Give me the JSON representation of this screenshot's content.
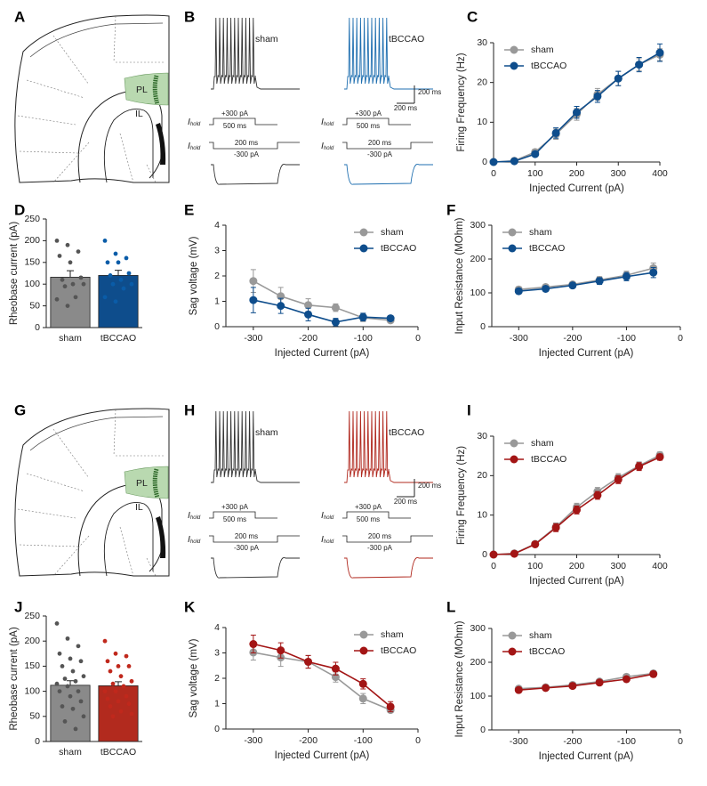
{
  "brain_panels": [
    {
      "panel": "A",
      "regions": [
        "PL",
        "IL"
      ]
    },
    {
      "panel": "G",
      "regions": [
        "PL",
        "IL"
      ]
    }
  ],
  "trace_panels": [
    {
      "panel": "B",
      "scale_y": "200 ms",
      "scale_x": "200 ms",
      "groups": [
        {
          "name": "sham",
          "color": "#333333",
          "step_up": "+300 pA",
          "step_up_duration": "500 ms",
          "step_down_duration": "200 ms",
          "step_down": "-300 pA",
          "hold_symbol": "I",
          "hold_subscript": "hold"
        },
        {
          "name": "tBCCAO",
          "color": "#1f6fb0",
          "step_up": "+300 pA",
          "step_up_duration": "500 ms",
          "step_down_duration": "200 ms",
          "step_down": "-300 pA",
          "hold_symbol": "I",
          "hold_subscript": "hold"
        }
      ]
    },
    {
      "panel": "H",
      "scale_y": "200 ms",
      "scale_x": "200 ms",
      "groups": [
        {
          "name": "sham",
          "color": "#333333",
          "step_up": "+300 pA",
          "step_up_duration": "500 ms",
          "step_down_duration": "200 ms",
          "step_down": "-300 pA",
          "hold_symbol": "I",
          "hold_subscript": "hold"
        },
        {
          "name": "tBCCAO",
          "color": "#b0281e",
          "step_up": "+300 pA",
          "step_up_duration": "500 ms",
          "step_down_duration": "200 ms",
          "step_down": "-300 pA",
          "hold_symbol": "I",
          "hold_subscript": "hold"
        }
      ]
    }
  ],
  "chart_data": [
    {
      "type": "line",
      "panel": "C",
      "xlabel": "Injected Current (pA)",
      "ylabel": "Firing Frequency (Hz)",
      "legend": "upper left",
      "x": [
        0,
        50,
        100,
        150,
        200,
        250,
        300,
        350,
        400
      ],
      "xlim": [
        0,
        400
      ],
      "xticks": [
        0,
        100,
        200,
        300,
        400
      ],
      "ylim": [
        0,
        30
      ],
      "yticks": [
        0,
        10,
        20,
        30
      ],
      "series": [
        {
          "name": "sham",
          "color": "#999999",
          "values": [
            0,
            0.3,
            2.5,
            7,
            12,
            17,
            21,
            24.5,
            27
          ],
          "errors": [
            0,
            0.3,
            0.7,
            1.3,
            1.5,
            1.5,
            1.8,
            1.5,
            1.5
          ]
        },
        {
          "name": "tBCCAO",
          "color": "#0e4d8c",
          "values": [
            0,
            0.2,
            2,
            7.3,
            12.5,
            16.5,
            21,
            24.5,
            27.5
          ],
          "errors": [
            0,
            0.2,
            0.6,
            1.3,
            1.5,
            1.5,
            1.8,
            1.8,
            2.2
          ]
        }
      ]
    },
    {
      "type": "bar",
      "panel": "D",
      "ylabel": "Rheobase current (pA)",
      "categories": [
        "sham",
        "tBCCAO"
      ],
      "values": [
        116,
        120
      ],
      "errors": [
        15,
        12
      ],
      "colors": [
        "#8a8a8a",
        "#0e4d8c"
      ],
      "point_colors": [
        "#555555",
        "#0a5ca8"
      ],
      "ylim": [
        0,
        250
      ],
      "yticks": [
        0,
        50,
        100,
        150,
        200,
        250
      ],
      "points": [
        [
          200,
          190,
          175,
          165,
          150,
          115,
          110,
          100,
          100,
          95,
          70,
          65,
          50
        ],
        [
          200,
          170,
          160,
          150,
          150,
          125,
          120,
          110,
          100,
          100,
          90,
          70,
          60
        ]
      ]
    },
    {
      "type": "line",
      "panel": "E",
      "xlabel": "Injected Current (pA)",
      "ylabel": "Sag voltage (mV)",
      "legend": "upper right",
      "x": [
        -300,
        -250,
        -200,
        -150,
        -100,
        -50
      ],
      "xlim": [
        -350,
        0
      ],
      "xticks": [
        -300,
        -200,
        -100,
        0
      ],
      "ylim": [
        0,
        4
      ],
      "yticks": [
        0,
        1,
        2,
        3,
        4
      ],
      "series": [
        {
          "name": "sham",
          "color": "#999999",
          "values": [
            1.8,
            1.2,
            0.85,
            0.75,
            0.35,
            0.25
          ],
          "errors": [
            0.45,
            0.35,
            0.25,
            0.15,
            0.15,
            0.1
          ]
        },
        {
          "name": "tBCCAO",
          "color": "#0e4d8c",
          "values": [
            1.05,
            0.82,
            0.48,
            0.18,
            0.38,
            0.33
          ],
          "errors": [
            0.5,
            0.3,
            0.25,
            0.15,
            0.15,
            0.1
          ]
        }
      ]
    },
    {
      "type": "line",
      "panel": "F",
      "xlabel": "Injected Current (pA)",
      "ylabel": "Input Resistance (MOhm)",
      "legend": "upper left",
      "x": [
        -300,
        -250,
        -200,
        -150,
        -100,
        -50
      ],
      "xlim": [
        -350,
        0
      ],
      "xticks": [
        -300,
        -200,
        -100,
        0
      ],
      "ylim": [
        0,
        300
      ],
      "yticks": [
        0,
        100,
        200,
        300
      ],
      "series": [
        {
          "name": "sham",
          "color": "#999999",
          "values": [
            110,
            117,
            125,
            138,
            152,
            173
          ],
          "errors": [
            8,
            7,
            8,
            10,
            12,
            15
          ]
        },
        {
          "name": "tBCCAO",
          "color": "#0e4d8c",
          "values": [
            105,
            112,
            122,
            135,
            148,
            160
          ],
          "errors": [
            8,
            7,
            8,
            10,
            12,
            15
          ]
        }
      ]
    },
    {
      "type": "line",
      "panel": "I",
      "xlabel": "Injected Current (pA)",
      "ylabel": "Firing Frequency (Hz)",
      "legend": "upper left",
      "x": [
        0,
        50,
        100,
        150,
        200,
        250,
        300,
        350,
        400
      ],
      "xlim": [
        0,
        400
      ],
      "xticks": [
        0,
        100,
        200,
        300,
        400
      ],
      "ylim": [
        0,
        30
      ],
      "yticks": [
        0,
        10,
        20,
        30
      ],
      "series": [
        {
          "name": "sham",
          "color": "#999999",
          "values": [
            0,
            0.3,
            2.7,
            7,
            12,
            16,
            19.5,
            22.5,
            25.2
          ],
          "errors": [
            0,
            0.3,
            0.5,
            1,
            1,
            1,
            1,
            1,
            0.8
          ]
        },
        {
          "name": "tBCCAO",
          "color": "#a31515",
          "values": [
            0,
            0.2,
            2.6,
            6.8,
            11.3,
            15,
            19,
            22.3,
            24.7
          ],
          "errors": [
            0,
            0.2,
            0.5,
            1,
            1,
            1,
            1,
            1,
            0.8
          ]
        }
      ]
    },
    {
      "type": "bar",
      "panel": "J",
      "ylabel": "Rheobase current (pA)",
      "categories": [
        "sham",
        "tBCCAO"
      ],
      "values": [
        112,
        111
      ],
      "errors": [
        9,
        8
      ],
      "colors": [
        "#8a8a8a",
        "#b22a1e"
      ],
      "point_colors": [
        "#555555",
        "#c0281c"
      ],
      "ylim": [
        0,
        250
      ],
      "yticks": [
        0,
        50,
        100,
        150,
        200,
        250
      ],
      "points": [
        [
          235,
          205,
          190,
          175,
          165,
          160,
          150,
          140,
          130,
          125,
          120,
          115,
          110,
          100,
          100,
          90,
          80,
          70,
          65,
          50,
          40,
          25
        ],
        [
          200,
          175,
          170,
          160,
          150,
          150,
          140,
          130,
          120,
          115,
          110,
          100,
          100,
          90,
          85,
          80,
          75,
          70,
          60,
          55,
          50
        ]
      ]
    },
    {
      "type": "line",
      "panel": "K",
      "xlabel": "Injected Current (pA)",
      "ylabel": "Sag voltage (mV)",
      "legend": "upper right",
      "x": [
        -300,
        -250,
        -200,
        -150,
        -100,
        -50
      ],
      "xlim": [
        -350,
        0
      ],
      "xticks": [
        -300,
        -200,
        -100,
        0
      ],
      "ylim": [
        0,
        4
      ],
      "yticks": [
        0,
        1,
        2,
        3,
        4
      ],
      "series": [
        {
          "name": "sham",
          "color": "#999999",
          "values": [
            3.02,
            2.82,
            2.65,
            2.05,
            1.2,
            0.75
          ],
          "errors": [
            0.3,
            0.35,
            0.25,
            0.2,
            0.2,
            0.1
          ]
        },
        {
          "name": "tBCCAO",
          "color": "#a31515",
          "values": [
            3.35,
            3.1,
            2.65,
            2.38,
            1.78,
            0.88
          ],
          "errors": [
            0.35,
            0.3,
            0.25,
            0.25,
            0.2,
            0.2
          ]
        }
      ]
    },
    {
      "type": "line",
      "panel": "L",
      "xlabel": "Injected Current (pA)",
      "ylabel": "Input Resistance (MOhm)",
      "legend": "upper left",
      "x": [
        -300,
        -250,
        -200,
        -150,
        -100,
        -50
      ],
      "xlim": [
        -350,
        0
      ],
      "xticks": [
        -300,
        -200,
        -100,
        0
      ],
      "ylim": [
        0,
        300
      ],
      "yticks": [
        0,
        100,
        200,
        300
      ],
      "series": [
        {
          "name": "sham",
          "color": "#999999",
          "values": [
            122,
            126,
            133,
            143,
            157,
            167
          ],
          "errors": [
            5,
            5,
            5,
            6,
            7,
            8
          ]
        },
        {
          "name": "tBCCAO",
          "color": "#a31515",
          "values": [
            118,
            124,
            130,
            140,
            150,
            165
          ],
          "errors": [
            5,
            5,
            5,
            6,
            7,
            8
          ]
        }
      ]
    }
  ]
}
